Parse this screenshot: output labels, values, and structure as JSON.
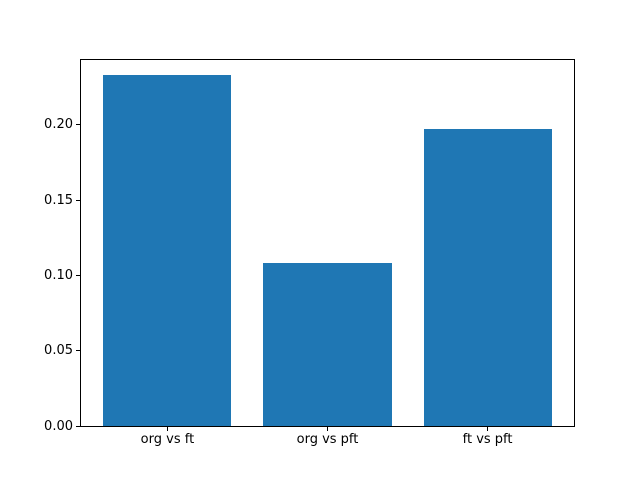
{
  "chart_data": {
    "type": "bar",
    "categories": [
      "org vs ft",
      "org vs pft",
      "ft vs pft"
    ],
    "values": [
      0.233,
      0.108,
      0.197
    ],
    "title": "",
    "xlabel": "",
    "ylabel": "",
    "ylim": [
      0,
      0.243
    ],
    "xlim": [
      -0.54,
      2.54
    ],
    "yticks": [
      0.0,
      0.05,
      0.1,
      0.15,
      0.2
    ],
    "ytick_labels": [
      "0.00",
      "0.05",
      "0.10",
      "0.15",
      "0.20"
    ],
    "bar_width": 0.8,
    "bar_color": "#1f77b4",
    "grid": false,
    "legend": "none"
  },
  "colors": {
    "bar": "#1f77b4",
    "axis": "#000000",
    "text": "#000000",
    "background": "#ffffff"
  }
}
